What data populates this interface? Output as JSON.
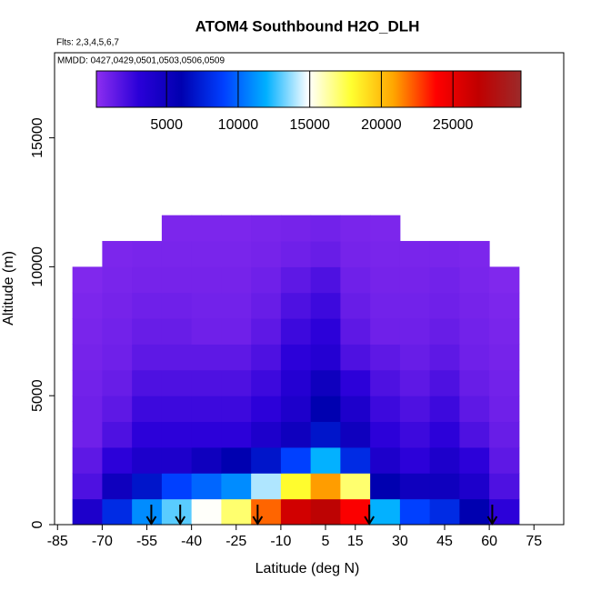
{
  "chart_data": {
    "type": "heatmap",
    "title": "ATOM4 Southbound H2O_DLH",
    "subtitle": "Flts: 2,3,4,5,6,7",
    "annotation": "MMDD: 0427,0429,0501,0503,0506,0509",
    "x_label": "Latitude (deg N)",
    "y_label": "Altitude (m)",
    "xlim": [
      -86,
      85
    ],
    "xticks": [
      -85,
      -70,
      -55,
      -40,
      -25,
      -10,
      5,
      15,
      30,
      45,
      60,
      75
    ],
    "ylim": [
      0,
      18300
    ],
    "yticks": [
      0,
      5000,
      10000,
      15000
    ],
    "x_edges": [
      -80,
      -70,
      -60,
      -50,
      -40,
      -30,
      -20,
      -10,
      0,
      10,
      20,
      30,
      40,
      50,
      60,
      70
    ],
    "y_edges": [
      0,
      1000,
      2000,
      3000,
      4000,
      5000,
      6000,
      7000,
      8000,
      9000,
      10000,
      11000,
      12000
    ],
    "z": [
      [
        4000,
        8000,
        11000,
        13000,
        15000,
        17000,
        22000,
        26000,
        27000,
        24000,
        12000,
        9000,
        8000,
        6000,
        3000
      ],
      [
        2000,
        5000,
        7000,
        9000,
        10000,
        11000,
        14000,
        18000,
        21000,
        17000,
        6000,
        5000,
        5000,
        4000,
        2000
      ],
      [
        1500,
        3000,
        4000,
        4000,
        5000,
        6000,
        7000,
        9000,
        12000,
        8000,
        4000,
        3000,
        4000,
        3000,
        1500
      ],
      [
        1000,
        2000,
        3000,
        3000,
        3000,
        3000,
        4000,
        5000,
        7000,
        5000,
        3000,
        2500,
        3000,
        2000,
        1200
      ],
      [
        1000,
        1500,
        2500,
        2500,
        2500,
        2500,
        3000,
        4000,
        6000,
        4000,
        2500,
        2000,
        2500,
        1500,
        1000
      ],
      [
        900,
        1200,
        2000,
        2000,
        2000,
        2000,
        2500,
        3500,
        5000,
        3000,
        2000,
        1500,
        2000,
        1200,
        900
      ],
      [
        800,
        1000,
        1500,
        1500,
        1500,
        1500,
        2000,
        3000,
        3500,
        2000,
        1500,
        1200,
        1500,
        1000,
        800
      ],
      [
        700,
        900,
        1200,
        1200,
        1000,
        1000,
        1500,
        2500,
        3000,
        1500,
        1000,
        1000,
        1200,
        900,
        700
      ],
      [
        600,
        800,
        1000,
        1000,
        900,
        900,
        1200,
        2000,
        2500,
        1200,
        900,
        900,
        1000,
        800,
        600
      ],
      [
        500,
        700,
        800,
        800,
        800,
        800,
        1000,
        1500,
        2000,
        1000,
        800,
        800,
        900,
        700,
        500
      ],
      [
        null,
        600,
        700,
        700,
        700,
        700,
        800,
        1000,
        1200,
        800,
        700,
        700,
        700,
        600,
        null
      ],
      [
        null,
        null,
        null,
        600,
        600,
        600,
        700,
        800,
        900,
        700,
        600,
        null,
        null,
        null,
        null
      ]
    ],
    "clim": [
      100,
      29750
    ],
    "cticks": [
      5000,
      10000,
      15000,
      20000,
      25000
    ],
    "colorscale": [
      "#8d2ef0",
      "#2a00d8",
      "#0000b0",
      "#0040ff",
      "#00b0ff",
      "#ffffff",
      "#ffff30",
      "#ffa500",
      "#ff0000",
      "#c00000",
      "#9c2a2a"
    ],
    "markers": [
      -53.5,
      -43.8,
      -17.8,
      19.7,
      61
    ]
  }
}
